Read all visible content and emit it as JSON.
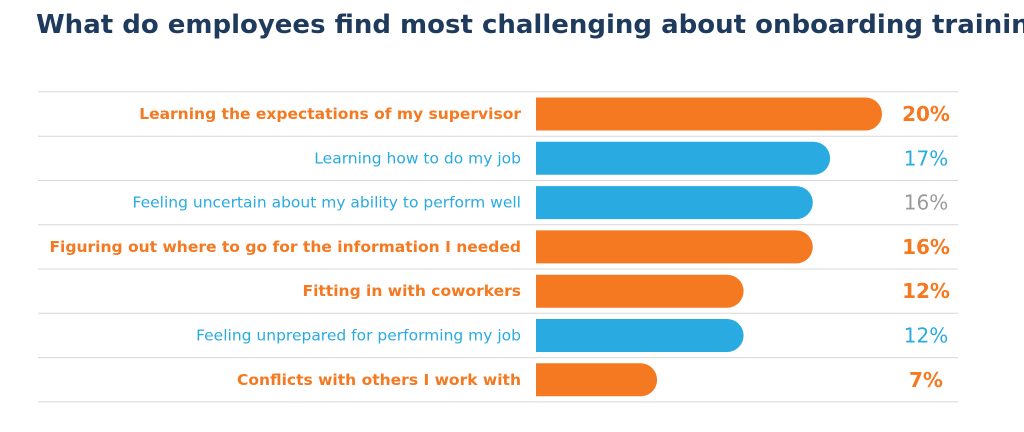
{
  "chart_data": {
    "type": "bar",
    "orientation": "horizontal",
    "title": "What do employees find most challenging about onboarding training?",
    "xlabel": "",
    "ylabel": "",
    "xlim": [
      0,
      20
    ],
    "grid": false,
    "legend": "none",
    "colors": {
      "highlight": "#f47920",
      "default": "#29abe2",
      "title": "#1e3a5c",
      "divider": "#d8d8d8"
    },
    "bars": [
      {
        "category": "Learning the expectations of my supervisor",
        "value": 20,
        "label": "20%",
        "color": "#f47920",
        "label_color": "#f47920",
        "bold": true
      },
      {
        "category": "Learning how to do my job",
        "value": 17,
        "label": "17%",
        "color": "#29abe2",
        "label_color": "#29abe2",
        "bold": false
      },
      {
        "category": "Feeling uncertain about my ability to perform well",
        "value": 16,
        "label": "16%",
        "color": "#29abe2",
        "label_color": "#9a9a9a",
        "bold": false
      },
      {
        "category": "Figuring out where to go for the information I needed",
        "value": 16,
        "label": "16%",
        "color": "#f47920",
        "label_color": "#f47920",
        "bold": true
      },
      {
        "category": "Fitting in with coworkers",
        "value": 12,
        "label": "12%",
        "color": "#f47920",
        "label_color": "#f47920",
        "bold": true
      },
      {
        "category": "Feeling unprepared for performing my job",
        "value": 12,
        "label": "12%",
        "color": "#29abe2",
        "label_color": "#29abe2",
        "bold": false
      },
      {
        "category": "Conflicts with others I work with",
        "value": 7,
        "label": "7%",
        "color": "#f47920",
        "label_color": "#f47920",
        "bold": true
      }
    ]
  }
}
